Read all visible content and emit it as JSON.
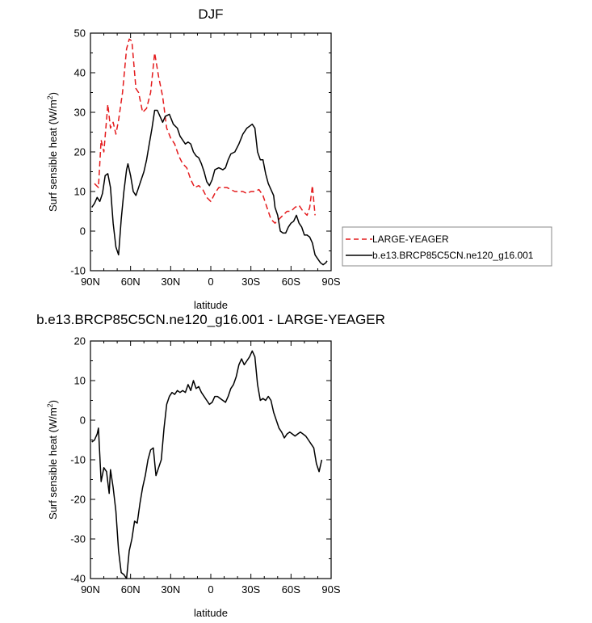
{
  "chart_data": [
    {
      "type": "line",
      "title": "DJF",
      "xlabel": "latitude",
      "ylabel": "Surf sensible heat (W/m",
      "ylabel_sup": "2",
      "ylabel_close": ")",
      "xlim": [
        90,
        -90
      ],
      "ylim": [
        -10,
        50
      ],
      "xticks": [
        90,
        60,
        30,
        0,
        -30,
        -60,
        -90
      ],
      "xtick_labels": [
        "90N",
        "60N",
        "30N",
        "0",
        "30S",
        "60S",
        "90S"
      ],
      "yticks": [
        -10,
        0,
        10,
        20,
        30,
        40,
        50
      ],
      "ytick_labels": [
        "-10",
        "0",
        "10",
        "20",
        "30",
        "40",
        "50"
      ],
      "legend_position": "outside-right",
      "series": [
        {
          "name": "LARGE-YEAGER",
          "color": "#e41a1c",
          "dash": "dashed",
          "points": [
            [
              87,
              12
            ],
            [
              84,
              11
            ],
            [
              82,
              23
            ],
            [
              80,
              20
            ],
            [
              77,
              32
            ],
            [
              75,
              26
            ],
            [
              73,
              27.5
            ],
            [
              71,
              24.5
            ],
            [
              69,
              28
            ],
            [
              66,
              35
            ],
            [
              63,
              46
            ],
            [
              61,
              48.5
            ],
            [
              59,
              48
            ],
            [
              56,
              36
            ],
            [
              54,
              35
            ],
            [
              51,
              30
            ],
            [
              48,
              31
            ],
            [
              45,
              35
            ],
            [
              42,
              45
            ],
            [
              39,
              39
            ],
            [
              36,
              34
            ],
            [
              33,
              26
            ],
            [
              30,
              23.5
            ],
            [
              27,
              22
            ],
            [
              24,
              19
            ],
            [
              21,
              17
            ],
            [
              18,
              16
            ],
            [
              15,
              13
            ],
            [
              12,
              11
            ],
            [
              9,
              11.5
            ],
            [
              6,
              10.5
            ],
            [
              3,
              8.5
            ],
            [
              0,
              7.5
            ],
            [
              -3,
              9.5
            ],
            [
              -6,
              11
            ],
            [
              -9,
              11
            ],
            [
              -12,
              11
            ],
            [
              -15,
              10.5
            ],
            [
              -18,
              10
            ],
            [
              -21,
              10
            ],
            [
              -24,
              10
            ],
            [
              -27,
              9.5
            ],
            [
              -30,
              10
            ],
            [
              -33,
              10
            ],
            [
              -36,
              10.5
            ],
            [
              -39,
              9
            ],
            [
              -42,
              6
            ],
            [
              -45,
              3
            ],
            [
              -48,
              2
            ],
            [
              -51,
              3
            ],
            [
              -54,
              4
            ],
            [
              -57,
              5
            ],
            [
              -60,
              5
            ],
            [
              -63,
              6
            ],
            [
              -66,
              6.5
            ],
            [
              -69,
              5
            ],
            [
              -72,
              4
            ],
            [
              -74,
              6
            ],
            [
              -76,
              11.5
            ],
            [
              -78,
              4
            ]
          ]
        },
        {
          "name": "b.e13.BRCP85C5CN.ne120_g16.001",
          "color": "#000000",
          "dash": "solid",
          "points": [
            [
              89,
              6
            ],
            [
              87,
              7
            ],
            [
              85,
              8.5
            ],
            [
              83,
              7.5
            ],
            [
              81,
              9.5
            ],
            [
              79,
              14
            ],
            [
              77,
              14.5
            ],
            [
              75,
              11
            ],
            [
              73,
              2
            ],
            [
              71,
              -4
            ],
            [
              69,
              -6
            ],
            [
              67,
              3
            ],
            [
              65,
              10
            ],
            [
              63,
              15.5
            ],
            [
              62,
              17
            ],
            [
              60,
              14
            ],
            [
              58,
              10
            ],
            [
              56,
              9
            ],
            [
              54,
              11
            ],
            [
              52,
              13
            ],
            [
              50,
              15
            ],
            [
              48,
              18
            ],
            [
              46,
              22
            ],
            [
              44,
              26
            ],
            [
              42,
              30.5
            ],
            [
              40,
              30.5
            ],
            [
              38,
              29
            ],
            [
              36,
              27.5
            ],
            [
              34,
              29
            ],
            [
              31,
              29.5
            ],
            [
              28,
              27
            ],
            [
              25,
              26
            ],
            [
              23,
              24
            ],
            [
              21,
              23
            ],
            [
              19,
              22
            ],
            [
              17,
              22.5
            ],
            [
              15,
              22
            ],
            [
              13,
              20
            ],
            [
              11,
              19
            ],
            [
              9,
              18.5
            ],
            [
              7,
              17
            ],
            [
              5,
              15
            ],
            [
              3,
              12.5
            ],
            [
              1,
              11.5
            ],
            [
              -1,
              13
            ],
            [
              -3,
              15.5
            ],
            [
              -6,
              16
            ],
            [
              -9,
              15.5
            ],
            [
              -11,
              16
            ],
            [
              -13,
              18
            ],
            [
              -15,
              19.5
            ],
            [
              -18,
              20
            ],
            [
              -21,
              22
            ],
            [
              -24,
              24.5
            ],
            [
              -27,
              26
            ],
            [
              -29,
              26.5
            ],
            [
              -31,
              27
            ],
            [
              -33,
              26
            ],
            [
              -35,
              20
            ],
            [
              -37,
              18
            ],
            [
              -39,
              18
            ],
            [
              -41,
              14.5
            ],
            [
              -43,
              12
            ],
            [
              -45,
              10.5
            ],
            [
              -47,
              9
            ],
            [
              -48,
              6
            ],
            [
              -50,
              4
            ],
            [
              -52,
              0
            ],
            [
              -54,
              -0.5
            ],
            [
              -56,
              -0.5
            ],
            [
              -58,
              1
            ],
            [
              -60,
              2
            ],
            [
              -62,
              2.5
            ],
            [
              -64,
              4
            ],
            [
              -66,
              2
            ],
            [
              -68,
              1
            ],
            [
              -70,
              -1
            ],
            [
              -72,
              -1
            ],
            [
              -74,
              -1.5
            ],
            [
              -76,
              -3
            ],
            [
              -78,
              -6
            ],
            [
              -80,
              -7
            ],
            [
              -82,
              -8
            ],
            [
              -84,
              -8.5
            ],
            [
              -86,
              -8
            ],
            [
              -87,
              -7.5
            ]
          ]
        }
      ]
    },
    {
      "type": "line",
      "title": "b.e13.BRCP85C5CN.ne120_g16.001 - LARGE-YEAGER",
      "xlabel": "latitude",
      "ylabel": "Surf sensible heat (W/m",
      "ylabel_sup": "2",
      "ylabel_close": ")",
      "xlim": [
        90,
        -90
      ],
      "ylim": [
        -40,
        20
      ],
      "xticks": [
        90,
        60,
        30,
        0,
        -30,
        -60,
        -90
      ],
      "xtick_labels": [
        "90N",
        "60N",
        "30N",
        "0",
        "30S",
        "60S",
        "90S"
      ],
      "yticks": [
        -40,
        -30,
        -20,
        -10,
        0,
        10,
        20
      ],
      "ytick_labels": [
        "-40",
        "-30",
        "-20",
        "-10",
        "0",
        "10",
        "20"
      ],
      "series": [
        {
          "color": "#000000",
          "dash": "solid",
          "points": [
            [
              89,
              -5.5
            ],
            [
              87,
              -5
            ],
            [
              85,
              -3.5
            ],
            [
              84,
              -2
            ],
            [
              82,
              -15.5
            ],
            [
              80,
              -12
            ],
            [
              78,
              -13
            ],
            [
              76,
              -18.5
            ],
            [
              75,
              -12.5
            ],
            [
              73,
              -17
            ],
            [
              71,
              -23
            ],
            [
              69,
              -33
            ],
            [
              67,
              -38.5
            ],
            [
              65,
              -39
            ],
            [
              63,
              -40
            ],
            [
              61,
              -33
            ],
            [
              59,
              -30
            ],
            [
              57,
              -25.5
            ],
            [
              55,
              -26
            ],
            [
              53,
              -21
            ],
            [
              51,
              -17
            ],
            [
              49,
              -14
            ],
            [
              47,
              -10
            ],
            [
              45,
              -7.5
            ],
            [
              43,
              -7
            ],
            [
              41,
              -14
            ],
            [
              39,
              -12
            ],
            [
              37,
              -10
            ],
            [
              35,
              -2
            ],
            [
              33,
              4
            ],
            [
              31,
              6
            ],
            [
              29,
              7
            ],
            [
              27,
              6.5
            ],
            [
              25,
              7.5
            ],
            [
              23,
              7
            ],
            [
              21,
              7.5
            ],
            [
              19,
              7
            ],
            [
              17,
              9
            ],
            [
              15,
              7.5
            ],
            [
              13,
              10
            ],
            [
              11,
              8
            ],
            [
              9,
              8.5
            ],
            [
              7,
              7
            ],
            [
              5,
              6
            ],
            [
              3,
              5
            ],
            [
              1,
              4
            ],
            [
              -1,
              4.5
            ],
            [
              -3,
              6
            ],
            [
              -5,
              6
            ],
            [
              -7,
              5.5
            ],
            [
              -9,
              5
            ],
            [
              -11,
              4.5
            ],
            [
              -13,
              6
            ],
            [
              -15,
              8
            ],
            [
              -17,
              9
            ],
            [
              -19,
              11
            ],
            [
              -21,
              14
            ],
            [
              -23,
              15.5
            ],
            [
              -25,
              14
            ],
            [
              -27,
              15
            ],
            [
              -29,
              16
            ],
            [
              -31,
              17.5
            ],
            [
              -33,
              16
            ],
            [
              -35,
              9
            ],
            [
              -37,
              5
            ],
            [
              -39,
              5.5
            ],
            [
              -41,
              5
            ],
            [
              -43,
              6
            ],
            [
              -45,
              5
            ],
            [
              -47,
              2
            ],
            [
              -49,
              0
            ],
            [
              -51,
              -2
            ],
            [
              -53,
              -3
            ],
            [
              -55,
              -4.5
            ],
            [
              -57,
              -3.5
            ],
            [
              -59,
              -3
            ],
            [
              -61,
              -3.5
            ],
            [
              -63,
              -4
            ],
            [
              -65,
              -3.5
            ],
            [
              -67,
              -3
            ],
            [
              -69,
              -3.5
            ],
            [
              -71,
              -4
            ],
            [
              -73,
              -5
            ],
            [
              -75,
              -6
            ],
            [
              -77,
              -7
            ],
            [
              -79,
              -11
            ],
            [
              -81,
              -13
            ],
            [
              -83,
              -10
            ]
          ]
        }
      ]
    }
  ]
}
